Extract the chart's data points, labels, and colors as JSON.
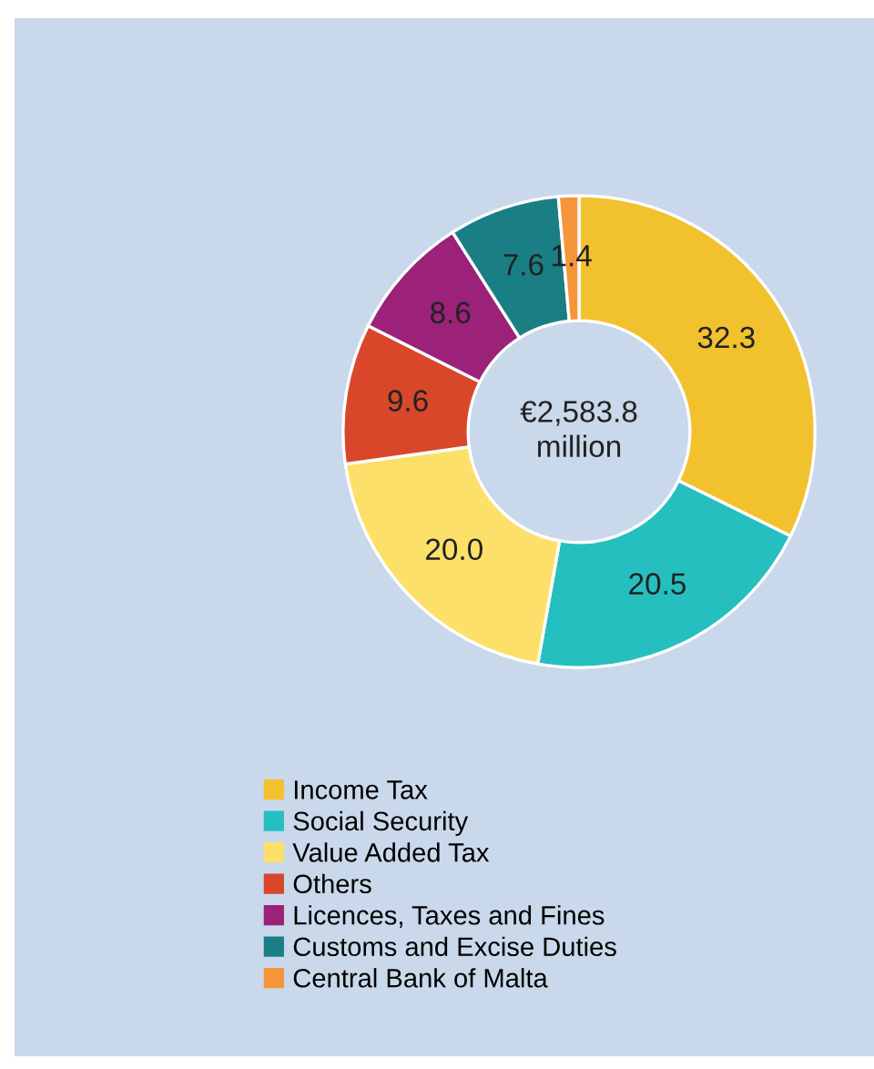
{
  "chart_data": {
    "type": "donut",
    "categories": [
      "Income Tax",
      "Social Security",
      "Value Added Tax",
      "Others",
      "Licences, Taxes and Fines",
      "Customs and Excise Duties",
      "Central Bank of Malta"
    ],
    "values": [
      32.3,
      20.5,
      20.0,
      9.6,
      8.6,
      7.6,
      1.4
    ],
    "colors": [
      "#f2c12e",
      "#26bfbf",
      "#fde06a",
      "#d9472b",
      "#9b2278",
      "#1a7f84",
      "#f7953a"
    ],
    "value_labels": [
      "32.3",
      "20.5",
      "20.0",
      "9.6",
      "8.6",
      "7.6",
      "1.4"
    ],
    "annotations": [
      "€2,583.8\nmillion"
    ],
    "legend": "bottom"
  }
}
